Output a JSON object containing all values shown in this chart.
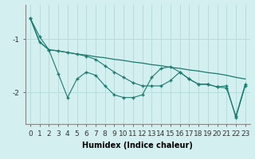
{
  "x": [
    0,
    1,
    2,
    3,
    4,
    5,
    6,
    7,
    8,
    9,
    10,
    11,
    12,
    13,
    14,
    15,
    16,
    17,
    18,
    19,
    20,
    21,
    22,
    23
  ],
  "series1": [
    -0.6,
    -0.95,
    -1.2,
    -1.65,
    -2.1,
    -1.75,
    -1.62,
    -1.68,
    -1.88,
    -2.05,
    -2.1,
    -2.1,
    -2.05,
    -1.72,
    -1.55,
    -1.52,
    -1.62,
    -1.75,
    -1.85,
    -1.85,
    -1.9,
    -1.92,
    -2.45,
    -1.85
  ],
  "series2": [
    -0.6,
    -1.05,
    -1.2,
    -1.22,
    -1.25,
    -1.28,
    -1.3,
    -1.33,
    -1.35,
    -1.38,
    -1.4,
    -1.43,
    -1.45,
    -1.48,
    -1.5,
    -1.53,
    -1.55,
    -1.58,
    -1.6,
    -1.63,
    -1.65,
    -1.68,
    -1.72,
    -1.75
  ],
  "series3": [
    -0.6,
    -1.05,
    -1.2,
    -1.22,
    -1.25,
    -1.28,
    -1.32,
    -1.38,
    -1.5,
    -1.62,
    -1.72,
    -1.82,
    -1.88,
    -1.88,
    -1.88,
    -1.78,
    -1.62,
    -1.75,
    -1.85,
    -1.85,
    -1.9,
    -1.88,
    -2.48,
    -1.88
  ],
  "line_color": "#1a7a6e",
  "bg_color": "#d4efef",
  "grid_color": "#b8dcdc",
  "xlabel": "Humidex (Indice chaleur)",
  "yticks": [
    -2,
    -1
  ],
  "ylim": [
    -2.6,
    -0.35
  ],
  "xlim": [
    -0.5,
    23.5
  ],
  "xlabel_fontsize": 7,
  "tick_fontsize": 6.5
}
